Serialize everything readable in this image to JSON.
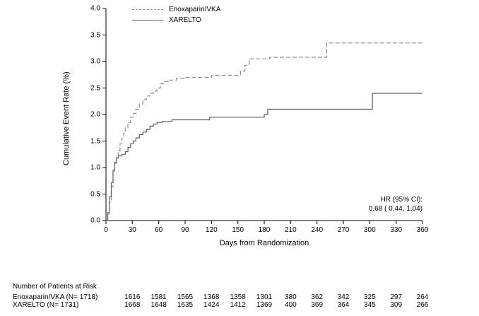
{
  "chart_data": {
    "type": "line",
    "subtype": "step-after",
    "title": "",
    "xlabel": "Days from Randomization",
    "ylabel": "Cumulative Event Rate (%)",
    "xlim": [
      0,
      360
    ],
    "ylim": [
      0,
      4.0
    ],
    "xticks": [
      0,
      30,
      60,
      90,
      120,
      150,
      180,
      210,
      240,
      270,
      300,
      330,
      360
    ],
    "xtick_labels": [
      "0",
      "30",
      "60",
      "90",
      "120",
      "150",
      "180",
      "210",
      "240",
      "270",
      "300",
      "330",
      "360"
    ],
    "yticks": [
      0.0,
      0.5,
      1.0,
      1.5,
      2.0,
      2.5,
      3.0,
      3.5,
      4.0
    ],
    "ytick_labels": [
      "0.0",
      "0.5",
      "1.0",
      "1.5",
      "2.0",
      "2.5",
      "3.0",
      "3.5",
      "4.0"
    ],
    "grid": false,
    "legend": {
      "position": "top-left-inside",
      "entries": [
        "Enoxaparin/VKA",
        "XARELTO"
      ]
    },
    "annotation": {
      "position": "bottom-right",
      "lines": [
        "HR (95% CI):",
        "0.68 ( 0.44,  1.04)"
      ]
    },
    "series": [
      {
        "name": "Enoxaparin/VKA",
        "style": "dashed",
        "color": "#8f8f8f",
        "points": [
          [
            0,
            0
          ],
          [
            2,
            0.12
          ],
          [
            4,
            0.35
          ],
          [
            6,
            0.64
          ],
          [
            8,
            0.9
          ],
          [
            10,
            1.08
          ],
          [
            12,
            1.2
          ],
          [
            14,
            1.32
          ],
          [
            16,
            1.45
          ],
          [
            18,
            1.55
          ],
          [
            20,
            1.65
          ],
          [
            22,
            1.75
          ],
          [
            25,
            1.85
          ],
          [
            28,
            1.95
          ],
          [
            31,
            2.02
          ],
          [
            34,
            2.1
          ],
          [
            38,
            2.2
          ],
          [
            42,
            2.28
          ],
          [
            46,
            2.35
          ],
          [
            50,
            2.4
          ],
          [
            54,
            2.44
          ],
          [
            58,
            2.5
          ],
          [
            62,
            2.58
          ],
          [
            66,
            2.62
          ],
          [
            72,
            2.65
          ],
          [
            80,
            2.68
          ],
          [
            90,
            2.7
          ],
          [
            117,
            2.7
          ],
          [
            120,
            2.74
          ],
          [
            150,
            2.74
          ],
          [
            153,
            2.82
          ],
          [
            158,
            2.93
          ],
          [
            163,
            3.05
          ],
          [
            183,
            3.05
          ],
          [
            186,
            3.08
          ],
          [
            249,
            3.08
          ],
          [
            251,
            3.35
          ],
          [
            360,
            3.35
          ]
        ]
      },
      {
        "name": "XARELTO",
        "style": "solid",
        "color": "#5c5c5c",
        "points": [
          [
            0,
            0
          ],
          [
            2,
            0.15
          ],
          [
            4,
            0.45
          ],
          [
            6,
            0.72
          ],
          [
            8,
            0.95
          ],
          [
            10,
            1.1
          ],
          [
            12,
            1.18
          ],
          [
            14,
            1.22
          ],
          [
            18,
            1.25
          ],
          [
            22,
            1.3
          ],
          [
            25,
            1.38
          ],
          [
            28,
            1.45
          ],
          [
            31,
            1.5
          ],
          [
            34,
            1.56
          ],
          [
            38,
            1.62
          ],
          [
            42,
            1.67
          ],
          [
            46,
            1.72
          ],
          [
            50,
            1.78
          ],
          [
            54,
            1.82
          ],
          [
            58,
            1.85
          ],
          [
            64,
            1.87
          ],
          [
            75,
            1.9
          ],
          [
            115,
            1.9
          ],
          [
            118,
            1.95
          ],
          [
            177,
            1.95
          ],
          [
            180,
            2.0
          ],
          [
            184,
            2.1
          ],
          [
            300,
            2.1
          ],
          [
            303,
            2.4
          ],
          [
            360,
            2.4
          ]
        ]
      }
    ]
  },
  "at_risk": {
    "header": "Number of Patients at Risk",
    "days": [
      30,
      60,
      90,
      120,
      150,
      180,
      210,
      240,
      270,
      300,
      330,
      360
    ],
    "rows": [
      {
        "label": "Enoxaparin/VKA (N= 1718)",
        "values": [
          1616,
          1581,
          1565,
          1368,
          1358,
          1301,
          380,
          362,
          342,
          325,
          297,
          264
        ]
      },
      {
        "label": "XARELTO (N= 1731)",
        "values": [
          1668,
          1648,
          1635,
          1424,
          1412,
          1369,
          400,
          369,
          364,
          345,
          309,
          266
        ]
      }
    ]
  }
}
